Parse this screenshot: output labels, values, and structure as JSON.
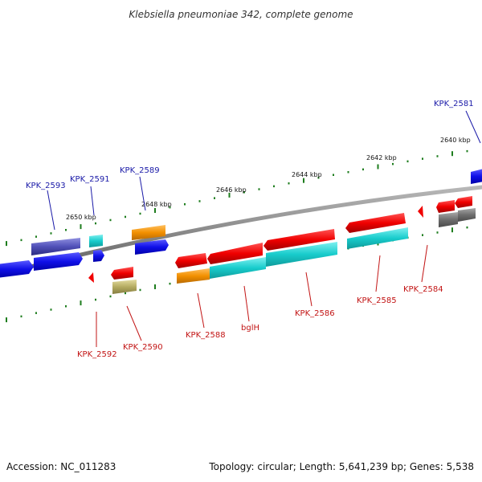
{
  "title": "Klebsiella pneumoniae 342, complete genome",
  "footer": {
    "accession": "Accession: NC_011283",
    "summary": "Topology: circular; Length: 5,641,239 bp; Genes: 5,538"
  },
  "scale": {
    "labels": [
      "2640 kbp",
      "2642 kbp",
      "2644 kbp",
      "2646 kbp",
      "2648 kbp",
      "2650 kbp"
    ]
  },
  "colors": {
    "forward_label": "#1a1aa8",
    "reverse_label": "#c21414",
    "tick": "#1e7d1e",
    "backbone": "#8c8c8c"
  },
  "labels": {
    "top": [
      "KPK_2581",
      "KPK_2589",
      "KPK_2591",
      "KPK_2593"
    ],
    "bottom": [
      "KPK_2584",
      "KPK_2585",
      "KPK_2586",
      "bglH",
      "KPK_2588",
      "KPK_2590",
      "KPK_2592"
    ]
  }
}
